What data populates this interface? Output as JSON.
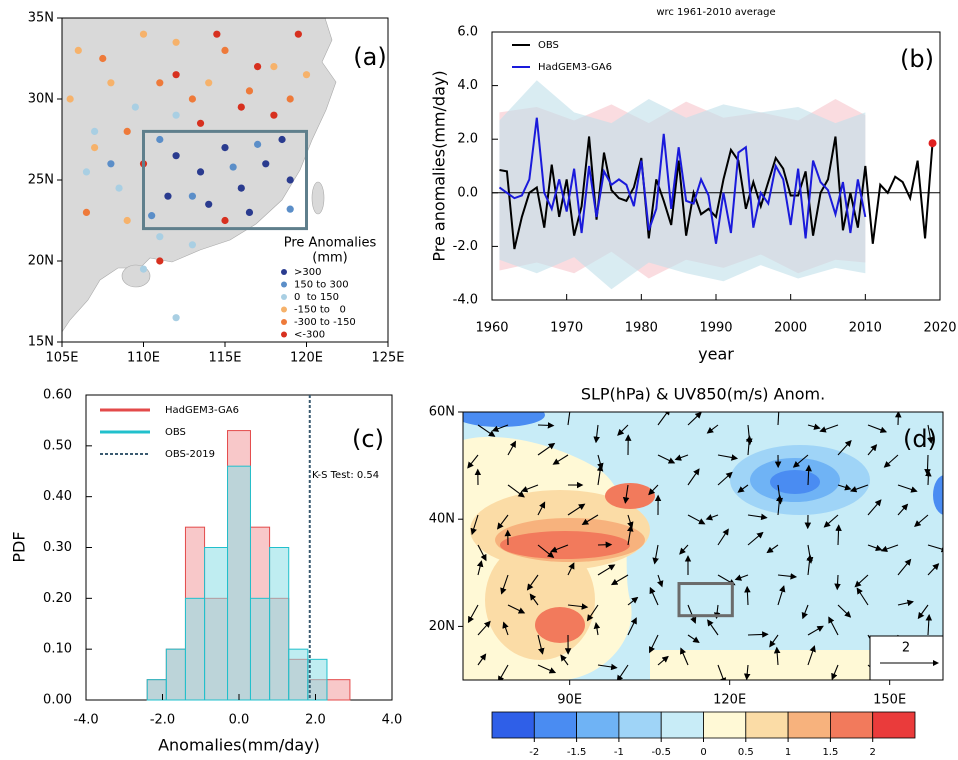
{
  "chart_data": [
    {
      "type": "scatter",
      "panel_label": "(a)",
      "legend_title": "Pre Anomalies",
      "legend_subtitle": "(mm)",
      "xlim": [
        105,
        125
      ],
      "ylim": [
        15,
        35
      ],
      "xticks": [
        {
          "value": 105,
          "label": "105E"
        },
        {
          "value": 110,
          "label": "110E"
        },
        {
          "value": 115,
          "label": "115E"
        },
        {
          "value": 120,
          "label": "120E"
        },
        {
          "value": 125,
          "label": "125E"
        }
      ],
      "yticks": [
        {
          "value": 15,
          "label": "15N"
        },
        {
          "value": 20,
          "label": "20N"
        },
        {
          "value": 25,
          "label": "25N"
        },
        {
          "value": 30,
          "label": "30N"
        },
        {
          "value": 35,
          "label": "35N"
        }
      ],
      "box": {
        "x": [
          110,
          120
        ],
        "y": [
          22,
          28
        ],
        "color": "#5f7f8c"
      },
      "series": [
        {
          "name": ">300",
          "color": "#2a3b8f",
          "x": [
            112,
            113.5,
            115,
            116,
            117.5,
            114,
            118.5,
            111.5,
            116.5,
            119
          ],
          "values": [
            26.5,
            25.5,
            27,
            24.5,
            26,
            23.5,
            27.5,
            24,
            23,
            25
          ]
        },
        {
          "name": "150 to 300",
          "color": "#5b8ec8",
          "x": [
            111,
            113,
            117,
            119,
            115.5,
            108,
            110.5
          ],
          "values": [
            27.5,
            24,
            27.2,
            23.2,
            25.8,
            26,
            22.8
          ]
        },
        {
          "name": "0  to 150",
          "color": "#a9cfe3",
          "x": [
            107,
            108.5,
            109.5,
            112,
            106.5,
            111,
            113,
            110,
            112
          ],
          "values": [
            28,
            24.5,
            29.5,
            29,
            25.5,
            21.5,
            21,
            19.5,
            16.5
          ]
        },
        {
          "name": "-150 to   0",
          "color": "#f6b26b",
          "x": [
            106,
            108,
            110,
            112,
            114,
            107,
            118,
            120,
            109,
            105.5
          ],
          "values": [
            33,
            31,
            34,
            33.5,
            31,
            27,
            32,
            31.5,
            22.5,
            30
          ]
        },
        {
          "name": "-300 to -150",
          "color": "#ee7a3a",
          "x": [
            107.5,
            111,
            115,
            116.5,
            119,
            113,
            109,
            106.5
          ],
          "values": [
            32.5,
            31,
            33,
            30.5,
            30,
            30,
            28,
            23
          ]
        },
        {
          "name": "<-300",
          "color": "#d7301f",
          "x": [
            112,
            114.5,
            117,
            119.5,
            116,
            118,
            110,
            113.5,
            111,
            115
          ],
          "values": [
            31.5,
            34,
            32,
            34,
            29.5,
            29,
            26,
            28.5,
            20,
            22.5
          ]
        }
      ]
    },
    {
      "type": "line",
      "panel_label": "(b)",
      "title": "wrc 1961-2010 average",
      "x_label": "year",
      "y_label": "Pre anomalies(mm/day)",
      "xlim": [
        1960,
        2020
      ],
      "xticks": [
        1960,
        1970,
        1980,
        1990,
        2000,
        2010,
        2020
      ],
      "ylim": [
        -4,
        6
      ],
      "yticks": [
        {
          "value": -4,
          "label": "-4.0"
        },
        {
          "value": -2,
          "label": "-2.0"
        },
        {
          "value": 0,
          "label": "0.0"
        },
        {
          "value": 2,
          "label": "2.0"
        },
        {
          "value": 4,
          "label": "4.0"
        },
        {
          "value": 6,
          "label": "6.0"
        }
      ],
      "reference_line": 0,
      "legend": "upper left",
      "bands": [
        {
          "color": "#f7c5cb",
          "x": [
            1961,
            1966,
            1971,
            1976,
            1981,
            1986,
            1991,
            1996,
            2001,
            2006,
            2010
          ],
          "lower": [
            -2.9,
            -2.6,
            -3.0,
            -2.2,
            -3.2,
            -2.5,
            -2.8,
            -2.3,
            -3.0,
            -2.5,
            -2.6
          ],
          "upper": [
            3.0,
            3.2,
            2.7,
            3.3,
            2.6,
            3.4,
            2.8,
            3.0,
            2.7,
            3.5,
            2.9
          ]
        },
        {
          "color": "#bfe0ea",
          "x": [
            1961,
            1966,
            1971,
            1976,
            1981,
            1986,
            1991,
            1996,
            2001,
            2006,
            2010
          ],
          "lower": [
            -2.5,
            -3.0,
            -2.4,
            -3.6,
            -2.6,
            -3.0,
            -3.3,
            -2.7,
            -3.2,
            -2.8,
            -3.0
          ],
          "upper": [
            2.7,
            4.2,
            3.0,
            2.6,
            3.5,
            2.8,
            3.3,
            3.0,
            3.2,
            2.6,
            3.0
          ]
        }
      ],
      "series": [
        {
          "name": "OBS",
          "color": "#000000",
          "end_marker_color": "#e02020",
          "x": [
            1961,
            1962,
            1963,
            1964,
            1965,
            1966,
            1967,
            1968,
            1969,
            1970,
            1971,
            1972,
            1973,
            1974,
            1975,
            1976,
            1977,
            1978,
            1979,
            1980,
            1981,
            1982,
            1983,
            1984,
            1985,
            1986,
            1987,
            1988,
            1989,
            1990,
            1991,
            1992,
            1993,
            1994,
            1995,
            1996,
            1997,
            1998,
            1999,
            2000,
            2001,
            2002,
            2003,
            2004,
            2005,
            2006,
            2007,
            2008,
            2009,
            2010,
            2011,
            2012,
            2013,
            2014,
            2015,
            2016,
            2017,
            2018,
            2019
          ],
          "values": [
            0.85,
            0.8,
            -2.1,
            -0.9,
            0.0,
            0.2,
            -1.3,
            1.05,
            -0.9,
            0.5,
            -1.6,
            -0.5,
            2.1,
            -1.0,
            1.5,
            0.1,
            -0.2,
            -0.3,
            0.2,
            1.3,
            -1.7,
            0.5,
            -0.3,
            -1.2,
            1.2,
            -1.6,
            0.0,
            -0.8,
            -0.6,
            -0.9,
            0.5,
            1.6,
            1.2,
            -0.6,
            0.4,
            -0.5,
            0.4,
            1.3,
            0.9,
            -0.1,
            -0.1,
            0.8,
            -1.6,
            0.0,
            0.5,
            2.1,
            -1.4,
            0.0,
            -1.3,
            1.0,
            -1.9,
            0.3,
            0.0,
            0.6,
            0.4,
            -0.2,
            1.2,
            -1.7,
            1.85
          ]
        },
        {
          "name": "HadGEM3-GA6",
          "color": "#1a1adb",
          "x": [
            1961,
            1962,
            1963,
            1964,
            1965,
            1966,
            1967,
            1968,
            1969,
            1970,
            1971,
            1972,
            1973,
            1974,
            1975,
            1976,
            1977,
            1978,
            1979,
            1980,
            1981,
            1982,
            1983,
            1984,
            1985,
            1986,
            1987,
            1988,
            1989,
            1990,
            1991,
            1992,
            1993,
            1994,
            1995,
            1996,
            1997,
            1998,
            1999,
            2000,
            2001,
            2002,
            2003,
            2004,
            2005,
            2006,
            2007,
            2008,
            2009,
            2010
          ],
          "values": [
            0.2,
            0.0,
            -0.2,
            -0.1,
            0.5,
            2.8,
            0.0,
            -0.6,
            0.5,
            -0.7,
            0.9,
            -1.5,
            1.0,
            -0.9,
            0.8,
            0.3,
            0.5,
            0.3,
            -0.5,
            1.2,
            -1.4,
            -0.6,
            2.2,
            -0.6,
            1.7,
            -0.3,
            -0.4,
            0.5,
            -0.1,
            -1.9,
            0.0,
            -1.5,
            1.5,
            1.7,
            -1.3,
            0.0,
            -0.4,
            1.0,
            0.5,
            -1.2,
            0.9,
            -1.7,
            1.2,
            0.4,
            0.1,
            -0.8,
            0.4,
            -1.5,
            0.5,
            -0.9
          ]
        }
      ]
    },
    {
      "type": "histogram",
      "panel_label": "(c)",
      "x_label": "Anomalies(mm/day)",
      "y_label": "PDF",
      "annotation": "K-S Test: 0.54",
      "xlim": [
        -4,
        4
      ],
      "xticks": [
        {
          "value": -4,
          "label": "-4.0"
        },
        {
          "value": -2,
          "label": "-2.0"
        },
        {
          "value": 0,
          "label": "0.0"
        },
        {
          "value": 2,
          "label": "2.0"
        },
        {
          "value": 4,
          "label": "4.0"
        }
      ],
      "ylim": [
        0,
        0.6
      ],
      "yticks": [
        {
          "value": 0,
          "label": "0.00"
        },
        {
          "value": 0.1,
          "label": "0.10"
        },
        {
          "value": 0.2,
          "label": "0.20"
        },
        {
          "value": 0.3,
          "label": "0.30"
        },
        {
          "value": 0.4,
          "label": "0.40"
        },
        {
          "value": 0.5,
          "label": "0.50"
        },
        {
          "value": 0.6,
          "label": "0.60"
        }
      ],
      "bins": [
        -2.4,
        -1.9,
        -1.4,
        -0.9,
        -0.3,
        0.3,
        0.8,
        1.3,
        1.8,
        2.3,
        2.9
      ],
      "series": [
        {
          "name": "HadGEM3-GA6",
          "color": "#e34a4a",
          "fill": "#f29a9c",
          "values": [
            0.04,
            0.1,
            0.34,
            0.2,
            0.53,
            0.34,
            0.2,
            0.08,
            0.04,
            0.04
          ]
        },
        {
          "name": "OBS",
          "color": "#21c0cc",
          "fill": "#8adfe6",
          "values": [
            0.04,
            0.1,
            0.2,
            0.3,
            0.46,
            0.2,
            0.3,
            0.1,
            0.08,
            0
          ]
        }
      ],
      "vline": {
        "name": "OBS-2019",
        "value": 1.85,
        "color": "#3a5a70"
      }
    },
    {
      "type": "contour",
      "panel_label": "(d)",
      "title": "SLP(hPa) & UV850(m/s) Anom.",
      "xlim": [
        70,
        160
      ],
      "ylim": [
        10,
        60
      ],
      "xticks": [
        {
          "value": 90,
          "label": "90E"
        },
        {
          "value": 120,
          "label": "120E"
        },
        {
          "value": 150,
          "label": "150E"
        }
      ],
      "yticks": [
        {
          "value": 20,
          "label": "20N"
        },
        {
          "value": 40,
          "label": "40N"
        },
        {
          "value": 60,
          "label": "60N"
        }
      ],
      "box": {
        "x": [
          110.5,
          120.5
        ],
        "y": [
          22,
          28
        ],
        "color": "#6b6b6b"
      },
      "reference_vector": 2,
      "levels": [
        -2,
        -1.5,
        -1,
        -0.5,
        0,
        0.5,
        1,
        1.5,
        2
      ],
      "colors": [
        "#2f5fe8",
        "#4a8cf2",
        "#6fb3f5",
        "#9fd4f7",
        "#c8ecf7",
        "#fff9d6",
        "#fbdca6",
        "#f7b27d",
        "#f27a5c",
        "#ea3b3b"
      ]
    }
  ]
}
